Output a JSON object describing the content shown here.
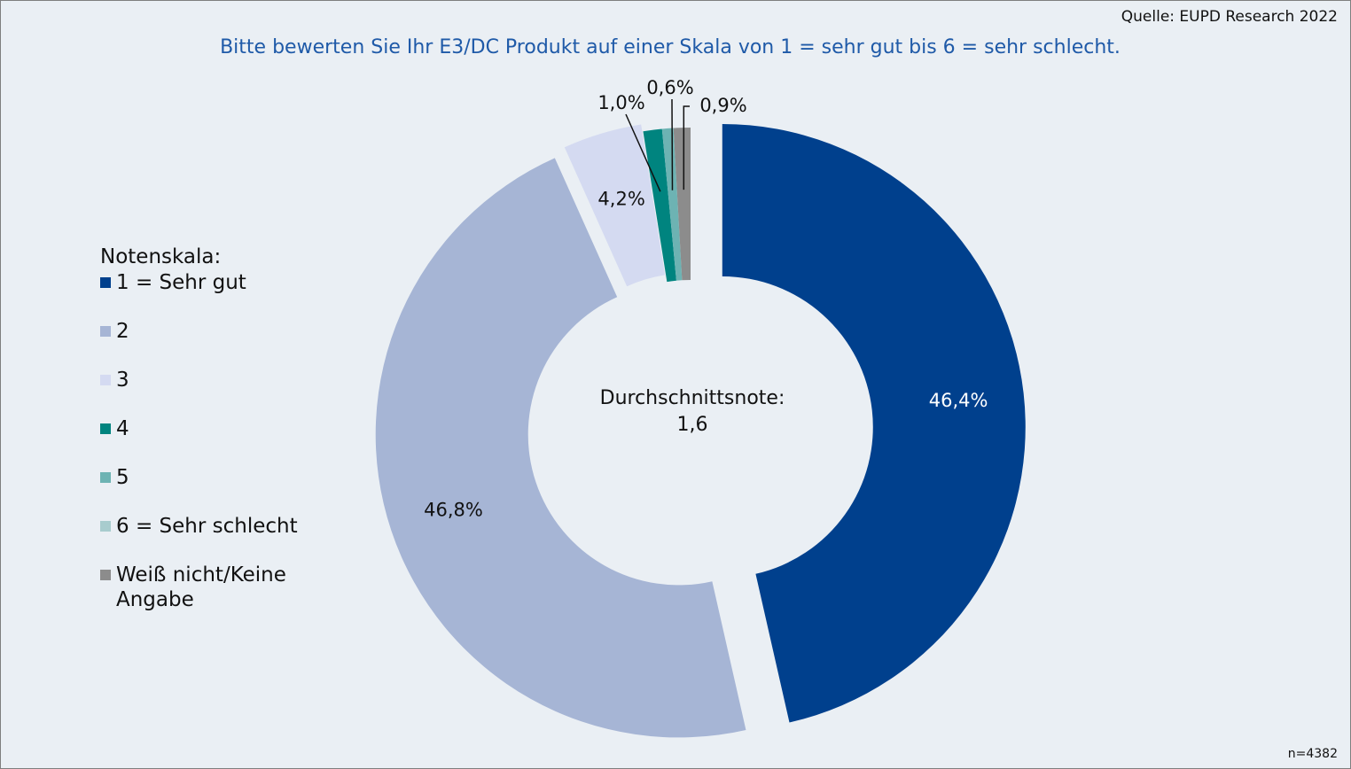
{
  "source": "Quelle: EUPD Research 2022",
  "note": "n=4382",
  "chart_data": {
    "type": "pie",
    "subtype": "donut",
    "title": "Bitte bewerten Sie Ihr E3/DC Produkt auf einer Skala von 1 = sehr gut bis 6 = sehr schlecht.",
    "legend_title": "Notenskala:",
    "legend_position": "left",
    "center_label": "Durchschnittsnote:",
    "center_value": "1,6",
    "categories": [
      "1 = Sehr gut",
      "2",
      "3",
      "4",
      "5",
      "6 = Sehr schlecht",
      "Weiß nicht/Keine Angabe"
    ],
    "values": [
      46.4,
      46.8,
      4.2,
      1.0,
      0.6,
      0.0,
      0.9
    ],
    "value_labels": [
      "46,4%",
      "46,8%",
      "4,2%",
      "1,0%",
      "0,6%",
      "",
      "0,9%"
    ],
    "colors": [
      "#00408d",
      "#a6b5d5",
      "#d4daf1",
      "#00847f",
      "#6db3b3",
      "#a8ccce",
      "#8c8c8c"
    ],
    "label_colors": [
      "#ffffff",
      "#111111",
      "#111111",
      "#111111",
      "#111111",
      "#111111",
      "#111111"
    ]
  }
}
